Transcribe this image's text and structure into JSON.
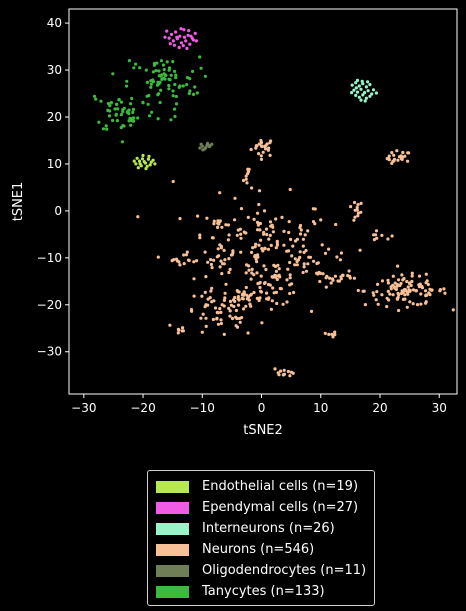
{
  "chart_data": {
    "type": "scatter",
    "xlabel": "tSNE2",
    "ylabel": "tSNE1",
    "xlim": [
      -32.5,
      33
    ],
    "ylim": [
      -39,
      43
    ],
    "xticks": [
      -30,
      -20,
      -10,
      0,
      10,
      20,
      30
    ],
    "yticks": [
      -30,
      -20,
      -10,
      0,
      10,
      20,
      30,
      40
    ],
    "grid": false,
    "legend_position": "below",
    "background": "#000000",
    "series": [
      {
        "name": "Endothelial cells (n=19)",
        "color": "#b5e853",
        "points": [
          [
            -21,
            11.2
          ],
          [
            -20.6,
            10.6
          ],
          [
            -20.1,
            11.1
          ],
          [
            -19.6,
            10.2
          ],
          [
            -19.1,
            11.0
          ],
          [
            -18.6,
            10.4
          ],
          [
            -21.2,
            10.0
          ],
          [
            -20.3,
            9.6
          ],
          [
            -19.3,
            9.5
          ],
          [
            -18.3,
            10.8
          ],
          [
            -20.8,
            9.2
          ],
          [
            -19.8,
            10.5
          ],
          [
            -18.8,
            9.8
          ],
          [
            -21.5,
            10.6
          ],
          [
            -20.0,
            11.8
          ],
          [
            -19.0,
            11.6
          ],
          [
            -18.0,
            10.0
          ],
          [
            -20.5,
            10.0
          ],
          [
            -19.5,
            9.0
          ]
        ]
      },
      {
        "name": "Ependymal cells (n=27)",
        "color": "#f05ce6",
        "points": [
          [
            -16,
            38.3
          ],
          [
            -15.2,
            37.6
          ],
          [
            -14.5,
            38.1
          ],
          [
            -13.8,
            37.2
          ],
          [
            -13.1,
            38.6
          ],
          [
            -12.4,
            37.4
          ],
          [
            -11.7,
            36.8
          ],
          [
            -11.2,
            37.8
          ],
          [
            -15.6,
            36.8
          ],
          [
            -14.9,
            36.2
          ],
          [
            -14.2,
            36.7
          ],
          [
            -13.5,
            35.8
          ],
          [
            -12.8,
            36.2
          ],
          [
            -12.1,
            35.5
          ],
          [
            -11.5,
            36.4
          ],
          [
            -14.7,
            35.3
          ],
          [
            -13.9,
            34.8
          ],
          [
            -13.2,
            35.2
          ],
          [
            -12.6,
            34.6
          ],
          [
            -16.3,
            37.0
          ],
          [
            -15.4,
            35.6
          ],
          [
            -13.0,
            37.0
          ],
          [
            -11.9,
            37.2
          ],
          [
            -12.3,
            38.4
          ],
          [
            -14.3,
            37.0
          ],
          [
            -13.6,
            38.8
          ],
          [
            -11.0,
            36.2
          ]
        ]
      },
      {
        "name": "Interneurons (n=26)",
        "color": "#98f5c8",
        "points": [
          [
            15.3,
            26.8
          ],
          [
            15.9,
            27.3
          ],
          [
            16.5,
            26.6
          ],
          [
            17.1,
            27.1
          ],
          [
            17.7,
            26.4
          ],
          [
            18.3,
            26.9
          ],
          [
            18.9,
            25.8
          ],
          [
            15.6,
            25.7
          ],
          [
            16.2,
            25.3
          ],
          [
            16.8,
            25.9
          ],
          [
            17.4,
            25.2
          ],
          [
            18.0,
            25.6
          ],
          [
            18.6,
            24.9
          ],
          [
            15.9,
            24.6
          ],
          [
            16.5,
            24.2
          ],
          [
            17.1,
            24.7
          ],
          [
            17.7,
            24.0
          ],
          [
            18.3,
            24.4
          ],
          [
            16.2,
            27.8
          ],
          [
            17.0,
            27.6
          ],
          [
            17.9,
            27.5
          ],
          [
            15.2,
            25.2
          ],
          [
            19.4,
            25.1
          ],
          [
            16.8,
            23.6
          ],
          [
            17.5,
            23.4
          ],
          [
            16.0,
            26.2
          ]
        ]
      },
      {
        "name": "Neurons (n=546)",
        "color": "#f7c097",
        "points": [],
        "clusters": [
          {
            "center": [
              0.3,
              13.6
            ],
            "spread": [
              1.0,
              1.0
            ],
            "count": 22
          },
          {
            "center": [
              23.2,
              11.2
            ],
            "spread": [
              1.0,
              0.8
            ],
            "count": 22
          },
          {
            "center": [
              -2.1,
              7.5
            ],
            "spread": [
              0.6,
              1.3
            ],
            "count": 9
          },
          {
            "center": [
              -14.5,
              6.0
            ],
            "spread": [
              0.2,
              0.2
            ],
            "count": 1
          },
          {
            "center": [
              15.6,
              -0.2
            ],
            "spread": [
              0.8,
              1.2
            ],
            "count": 12
          },
          {
            "center": [
              20.1,
              -5.5
            ],
            "spread": [
              1.1,
              0.5
            ],
            "count": 8
          },
          {
            "center": [
              0.0,
              -7.0
            ],
            "spread": [
              6.0,
              5.0
            ],
            "count": 150
          },
          {
            "center": [
              -7.2,
              -2.8
            ],
            "spread": [
              1.0,
              0.8
            ],
            "count": 9
          },
          {
            "center": [
              -12.8,
              -10.0
            ],
            "spread": [
              1.6,
              0.7
            ],
            "count": 14
          },
          {
            "center": [
              -6.6,
              -9.8
            ],
            "spread": [
              1.0,
              1.5
            ],
            "count": 14
          },
          {
            "center": [
              13.0,
              -14.2
            ],
            "spread": [
              2.0,
              0.6
            ],
            "count": 20
          },
          {
            "center": [
              24.5,
              -17.0
            ],
            "spread": [
              3.5,
              1.6
            ],
            "count": 100
          },
          {
            "center": [
              -7.0,
              -22.0
            ],
            "spread": [
              3.2,
              2.6
            ],
            "count": 60
          },
          {
            "center": [
              -2.8,
              -18.0
            ],
            "spread": [
              1.1,
              1.3
            ],
            "count": 16
          },
          {
            "center": [
              -13.4,
              -25.3
            ],
            "spread": [
              0.6,
              0.4
            ],
            "count": 6
          },
          {
            "center": [
              11.9,
              -26.4
            ],
            "spread": [
              0.4,
              0.3
            ],
            "count": 6
          },
          {
            "center": [
              3.8,
              -34.2
            ],
            "spread": [
              1.0,
              0.5
            ],
            "count": 12
          },
          {
            "center": [
              8.5,
              -21.6
            ],
            "spread": [
              0.2,
              0.2
            ],
            "count": 1
          },
          {
            "center": [
              1.5,
              -16.6
            ],
            "spread": [
              2.5,
              1.8
            ],
            "count": 45
          },
          {
            "center": [
              7.0,
              -12.0
            ],
            "spread": [
              2.0,
              2.0
            ],
            "count": 19
          }
        ]
      },
      {
        "name": "Oligodendrocytes (n=11)",
        "color": "#6e7f58",
        "points": [
          [
            -10.4,
            13.4
          ],
          [
            -10.0,
            13.8
          ],
          [
            -9.6,
            13.2
          ],
          [
            -9.2,
            14.0
          ],
          [
            -8.8,
            13.7
          ],
          [
            -8.4,
            14.2
          ],
          [
            -10.2,
            14.2
          ],
          [
            -9.4,
            13.5
          ],
          [
            -9.9,
            13.0
          ],
          [
            -8.7,
            13.9
          ],
          [
            -9.1,
            14.4
          ]
        ]
      },
      {
        "name": "Tanycytes (n=133)",
        "color": "#3db93d",
        "points": [
          [
            -28.2,
            24.4
          ],
          [
            -28.0,
            23.8
          ],
          [
            -22.3,
            32.0
          ],
          [
            -15.3,
            19.4
          ],
          [
            -14.6,
            20.1
          ],
          [
            -10.2,
            30.4
          ],
          [
            -25.1,
            29.2
          ],
          [
            -12.2,
            25.0
          ]
        ],
        "clusters": [
          {
            "center": [
              -16.5,
              27.5
            ],
            "spread": [
              3.0,
              2.6
            ],
            "count": 72
          },
          {
            "center": [
              -23.0,
              21.0
            ],
            "spread": [
              2.6,
              2.2
            ],
            "count": 53
          }
        ]
      }
    ]
  }
}
